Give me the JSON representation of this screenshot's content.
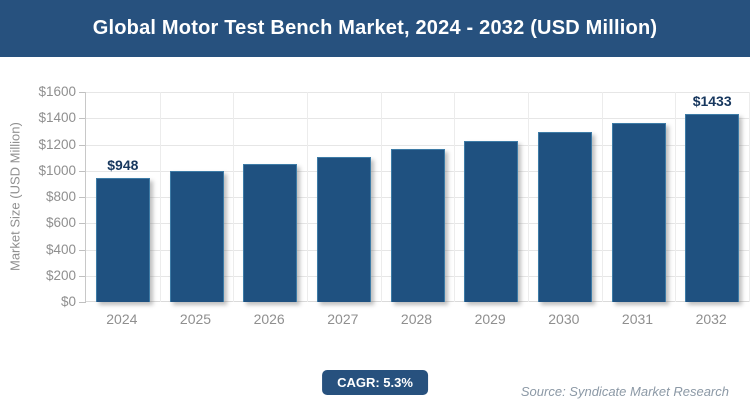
{
  "header": {
    "title": "Global Motor Test Bench Market, 2024 - 2032 (USD Million)"
  },
  "chart_data": {
    "type": "bar",
    "title": "Global Motor Test Bench Market, 2024 - 2032 (USD Million)",
    "categories": [
      "2024",
      "2025",
      "2026",
      "2027",
      "2028",
      "2029",
      "2030",
      "2031",
      "2032"
    ],
    "values": [
      948,
      998,
      1051,
      1107,
      1165,
      1227,
      1292,
      1361,
      1433
    ],
    "bar_labels": [
      "$948",
      "",
      "",
      "",
      "",
      "",
      "",
      "",
      "$1433"
    ],
    "xlabel": "",
    "ylabel": "Market Size (USD Million)",
    "ylim": [
      0,
      1600
    ],
    "y_tick_step": 200,
    "y_ticks_top_to_bottom": [
      "$1600",
      "$1400",
      "$1200",
      "$1000",
      "$800",
      "$600",
      "$400",
      "$200",
      "$0"
    ],
    "grid": true,
    "legend": "none",
    "colors": {
      "bar_fill": "#1F5180",
      "bar_border": "#3D7BA6",
      "value_label": "#17375E",
      "header_bg": "#27517E",
      "axis_text": "#8F8F8F",
      "gridline": "#E6E6E6"
    }
  },
  "footer": {
    "cagr_label": "CAGR: 5.3%",
    "source": "Source: Syndicate Market Research"
  }
}
